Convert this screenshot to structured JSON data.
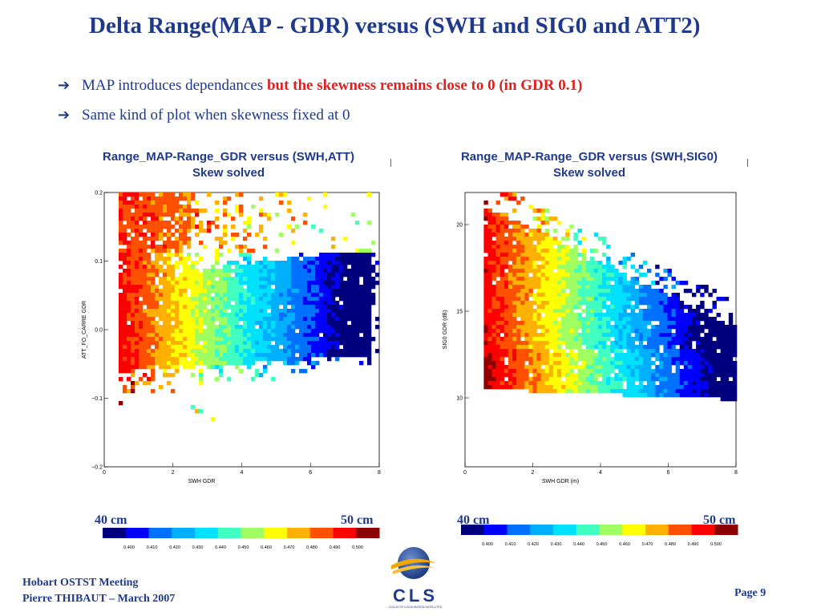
{
  "slide": {
    "title": "Delta Range(MAP - GDR) versus (SWH and SIG0 and ATT2)",
    "bullets": [
      {
        "text": "MAP introduces dependances ",
        "highlight": "but the skewness remains close to 0 (in GDR 0.1)"
      },
      {
        "text": "Same kind of plot when skewness fixed at 0",
        "highlight": ""
      }
    ],
    "arrow_icon": "➔"
  },
  "left_plot": {
    "title_line1": "Range_MAP-Range_GDR versus (SWH,ATT)",
    "title_line2": "Skew solved",
    "xlabel": "SWH GDR",
    "ylabel": "ATT_FO_CARRE GDR",
    "xticks": [
      "0",
      "2",
      "4",
      "6",
      "8"
    ],
    "yticks": [
      "0.2",
      "0.1",
      "0.0",
      "−0.1",
      "−0.2"
    ],
    "scale_left": "40 cm",
    "scale_right": "50 cm",
    "colorbar_ticks": [
      "0.400",
      "0.410",
      "0.420",
      "0.430",
      "0.440",
      "0.450",
      "0.460",
      "0.470",
      "0.480",
      "0.490",
      "0.500"
    ]
  },
  "right_plot": {
    "title_line1": "Range_MAP-Range_GDR versus (SWH,SIG0)",
    "title_line2": "Skew solved",
    "xlabel": "SWH GDR (m)",
    "ylabel": "SIG0 GDR (dB)",
    "xticks": [
      "0",
      "2",
      "4",
      "6",
      "8"
    ],
    "yticks": [
      "20",
      "15",
      "10"
    ],
    "scale_left": "40 cm",
    "scale_right": "50 cm",
    "colorbar_ticks": [
      "0.400",
      "0.410",
      "0.420",
      "0.430",
      "0.440",
      "0.450",
      "0.460",
      "0.470",
      "0.480",
      "0.490",
      "0.500"
    ]
  },
  "colormap": [
    "#00007f",
    "#0000ff",
    "#0070ff",
    "#00b0ff",
    "#00e0ff",
    "#40ffc0",
    "#a0ff60",
    "#ffff00",
    "#ffb000",
    "#ff5000",
    "#ff0000",
    "#8b0000"
  ],
  "footer": {
    "line1": "Hobart OSTST Meeting",
    "line2": "Pierre THIBAUT – March 2007",
    "logo_text": "CLS",
    "logo_subtext": "COLLECTE LOCALISATION SATELLITES",
    "page": "Page 9"
  }
}
